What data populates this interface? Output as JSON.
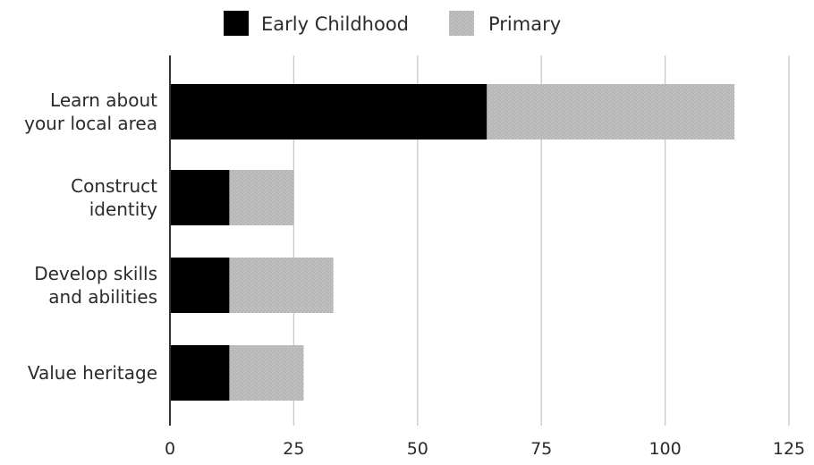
{
  "chart_data": {
    "type": "bar",
    "orientation": "horizontal",
    "stacked": true,
    "categories": [
      [
        "Learn about",
        "your local area"
      ],
      [
        "Construct",
        "identity"
      ],
      [
        "Develop skills",
        "and abilities"
      ],
      [
        "Value heritage"
      ]
    ],
    "series": [
      {
        "name": "Early Childhood",
        "values": [
          64,
          12,
          12,
          12
        ],
        "color": "#000000"
      },
      {
        "name": "Primary",
        "values": [
          50,
          13,
          21,
          15
        ],
        "color": "#b8b8b8"
      }
    ],
    "xlim": [
      0,
      125
    ],
    "xticks": [
      0,
      25,
      50,
      75,
      100,
      125
    ],
    "grid": true,
    "legend_position": "top-center",
    "title": "",
    "xlabel": "",
    "ylabel": ""
  }
}
